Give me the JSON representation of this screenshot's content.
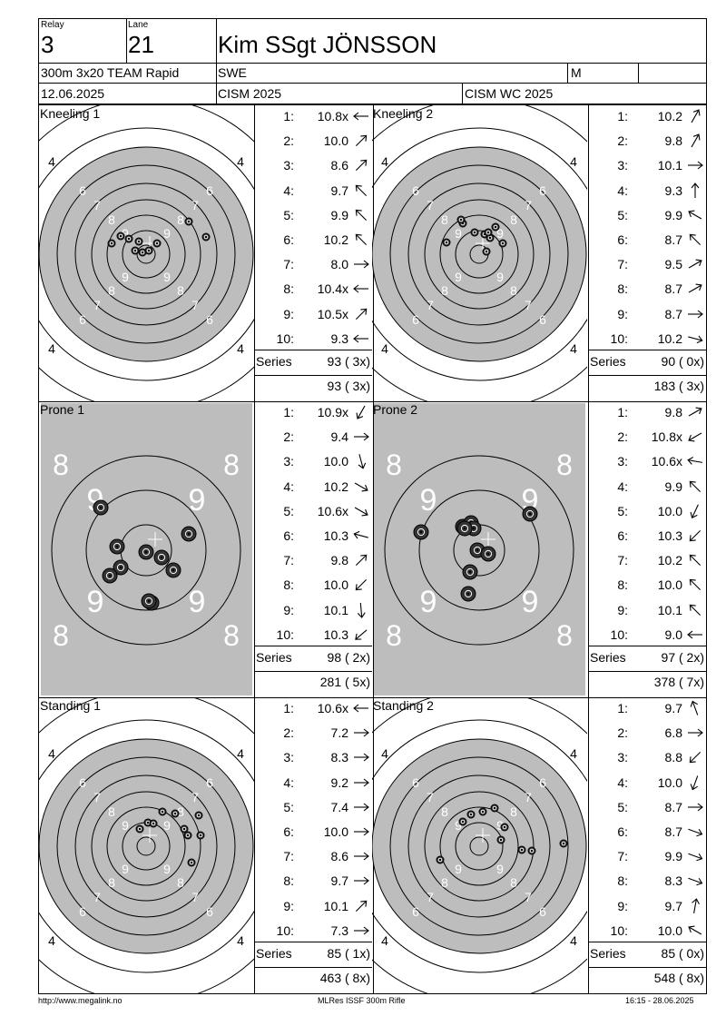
{
  "header": {
    "relay_label": "Relay",
    "relay_value": "3",
    "lane_label": "Lane",
    "lane_value": "21",
    "name": "Kim SSgt JÖNSSON",
    "event": "300m 3x20 TEAM Rapid",
    "nation": "SWE",
    "gender": "M",
    "date": "12.06.2025",
    "competition": "CISM 2025",
    "match": "CISM WC 2025"
  },
  "targets": [
    {
      "label": "Kneeling 1",
      "type": "kneel"
    },
    {
      "label": "Kneeling 2",
      "type": "kneel"
    },
    {
      "label": "Prone 1",
      "type": "prone"
    },
    {
      "label": "Prone 2",
      "type": "prone"
    },
    {
      "label": "Standing 1",
      "type": "kneel"
    },
    {
      "label": "Standing 2",
      "type": "kneel"
    }
  ],
  "series": [
    {
      "shots": [
        {
          "n": "1:",
          "v": "10.8x",
          "a": 180
        },
        {
          "n": "2:",
          "v": "10.0",
          "a": -45
        },
        {
          "n": "3:",
          "v": "8.6",
          "a": -45
        },
        {
          "n": "4:",
          "v": "9.7",
          "a": -135
        },
        {
          "n": "5:",
          "v": "9.9",
          "a": -135
        },
        {
          "n": "6:",
          "v": "10.2",
          "a": -135
        },
        {
          "n": "7:",
          "v": "8.0",
          "a": 0
        },
        {
          "n": "8:",
          "v": "10.4x",
          "a": 180
        },
        {
          "n": "9:",
          "v": "10.5x",
          "a": -45
        },
        {
          "n": "10:",
          "v": "9.3",
          "a": 180
        }
      ],
      "series_label": "Series",
      "series_total": "93 ( 3x)",
      "cumulative": "93 ( 3x)"
    },
    {
      "shots": [
        {
          "n": "1:",
          "v": "10.2",
          "a": -60
        },
        {
          "n": "2:",
          "v": "9.8",
          "a": -60
        },
        {
          "n": "3:",
          "v": "10.1",
          "a": 0
        },
        {
          "n": "4:",
          "v": "9.3",
          "a": -90
        },
        {
          "n": "5:",
          "v": "9.9",
          "a": -150
        },
        {
          "n": "6:",
          "v": "8.7",
          "a": -135
        },
        {
          "n": "7:",
          "v": "9.5",
          "a": -30
        },
        {
          "n": "8:",
          "v": "8.7",
          "a": -30
        },
        {
          "n": "9:",
          "v": "8.7",
          "a": 0
        },
        {
          "n": "10:",
          "v": "10.2",
          "a": 15
        }
      ],
      "series_label": "Series",
      "series_total": "90 ( 0x)",
      "cumulative": "183 ( 3x)"
    },
    {
      "shots": [
        {
          "n": "1:",
          "v": "10.9x",
          "a": 120
        },
        {
          "n": "2:",
          "v": "9.4",
          "a": 0
        },
        {
          "n": "3:",
          "v": "10.0",
          "a": 75
        },
        {
          "n": "4:",
          "v": "10.2",
          "a": 30
        },
        {
          "n": "5:",
          "v": "10.6x",
          "a": 30
        },
        {
          "n": "6:",
          "v": "10.3",
          "a": -165
        },
        {
          "n": "7:",
          "v": "9.8",
          "a": -45
        },
        {
          "n": "8:",
          "v": "10.0",
          "a": 135
        },
        {
          "n": "9:",
          "v": "10.1",
          "a": 85
        },
        {
          "n": "10:",
          "v": "10.3",
          "a": 140
        }
      ],
      "series_label": "Series",
      "series_total": "98 ( 2x)",
      "cumulative": "281 ( 5x)"
    },
    {
      "shots": [
        {
          "n": "1:",
          "v": "9.8",
          "a": -30
        },
        {
          "n": "2:",
          "v": "10.8x",
          "a": 150
        },
        {
          "n": "3:",
          "v": "10.6x",
          "a": -170
        },
        {
          "n": "4:",
          "v": "9.9",
          "a": -135
        },
        {
          "n": "5:",
          "v": "10.0",
          "a": 115
        },
        {
          "n": "6:",
          "v": "10.3",
          "a": 135
        },
        {
          "n": "7:",
          "v": "10.2",
          "a": -135
        },
        {
          "n": "8:",
          "v": "10.0",
          "a": -135
        },
        {
          "n": "9:",
          "v": "10.1",
          "a": -135
        },
        {
          "n": "10:",
          "v": "9.0",
          "a": 180
        }
      ],
      "series_label": "Series",
      "series_total": "97 ( 2x)",
      "cumulative": "378 ( 7x)"
    },
    {
      "shots": [
        {
          "n": "1:",
          "v": "10.6x",
          "a": 180
        },
        {
          "n": "2:",
          "v": "7.2",
          "a": 0
        },
        {
          "n": "3:",
          "v": "8.3",
          "a": 0
        },
        {
          "n": "4:",
          "v": "9.2",
          "a": 0
        },
        {
          "n": "5:",
          "v": "7.4",
          "a": 0
        },
        {
          "n": "6:",
          "v": "10.0",
          "a": 0
        },
        {
          "n": "7:",
          "v": "8.6",
          "a": 0
        },
        {
          "n": "8:",
          "v": "9.7",
          "a": 0
        },
        {
          "n": "9:",
          "v": "10.1",
          "a": -45
        },
        {
          "n": "10:",
          "v": "7.3",
          "a": 0
        }
      ],
      "series_label": "Series",
      "series_total": "85 ( 1x)",
      "cumulative": "463 ( 8x)"
    },
    {
      "shots": [
        {
          "n": "1:",
          "v": "9.7",
          "a": -110
        },
        {
          "n": "2:",
          "v": "6.8",
          "a": 0
        },
        {
          "n": "3:",
          "v": "8.8",
          "a": 135
        },
        {
          "n": "4:",
          "v": "10.0",
          "a": 110
        },
        {
          "n": "5:",
          "v": "8.7",
          "a": 0
        },
        {
          "n": "6:",
          "v": "8.7",
          "a": 20
        },
        {
          "n": "7:",
          "v": "9.9",
          "a": 20
        },
        {
          "n": "8:",
          "v": "8.3",
          "a": 20
        },
        {
          "n": "9:",
          "v": "9.7",
          "a": -80
        },
        {
          "n": "10:",
          "v": "10.0",
          "a": -150
        }
      ],
      "series_label": "Series",
      "series_total": "85 ( 0x)",
      "cumulative": "548 ( 8x)"
    }
  ],
  "footer": {
    "url": "http://www.megalink.no",
    "software": "MLRes ISSF 300m Rifle",
    "printed": "16:15 - 28.06.2025"
  },
  "colors": {
    "target_gray": "#bdbdbd",
    "line": "#000000"
  }
}
